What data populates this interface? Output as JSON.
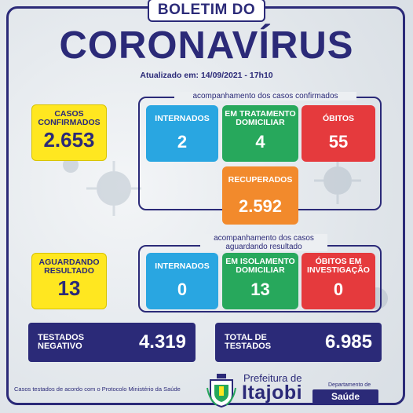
{
  "header": {
    "top_title": "BOLETIM DO",
    "main_title": "CORONAVÍRUS",
    "updated": "Atualizado em: 14/09/2021 - 17h10"
  },
  "confirmed": {
    "label_line1": "CASOS",
    "label_line2": "CONFIRMADOS",
    "value": "2.653"
  },
  "confirmed_group": {
    "title": "acompanhamento dos casos confirmados",
    "cards": [
      {
        "label": "INTERNADOS",
        "value": "2",
        "color": "#29a6e1"
      },
      {
        "label_line1": "EM TRATAMENTO",
        "label_line2": "DOMICILIAR",
        "value": "4",
        "color": "#27a85c"
      },
      {
        "label": "ÓBITOS",
        "value": "55",
        "color": "#e53a3d"
      }
    ],
    "recovered": {
      "label": "RECUPERADOS",
      "value": "2.592",
      "color": "#f28a2c"
    }
  },
  "awaiting": {
    "label_line1": "AGUARDANDO",
    "label_line2": "RESULTADO",
    "value": "13"
  },
  "awaiting_group": {
    "title_line1": "acompanhamento dos casos",
    "title_line2": "aguardando resultado",
    "cards": [
      {
        "label": "INTERNADOS",
        "value": "0",
        "color": "#29a6e1"
      },
      {
        "label_line1": "EM ISOLAMENTO",
        "label_line2": "DOMICILIAR",
        "value": "13",
        "color": "#27a85c"
      },
      {
        "label_line1": "ÓBITOS EM",
        "label_line2": "INVESTIGAÇÃO",
        "value": "0",
        "color": "#e53a3d"
      }
    ]
  },
  "tested_negative": {
    "label_line1": "TESTADOS",
    "label_line2": "NEGATIVO",
    "value": "4.319"
  },
  "total_tested": {
    "label_line1": "TOTAL DE",
    "label_line2": "TESTADOS",
    "value": "6.985"
  },
  "footer": {
    "note": "Casos testados de acordo com o  Protocolo Ministério da Saúde",
    "prefeitura": "Prefeitura de",
    "city": "Itajobi",
    "dept": "Departamento de",
    "saude": "Saúde"
  },
  "colors": {
    "navy": "#2b2a78",
    "yellow": "#ffe720"
  }
}
